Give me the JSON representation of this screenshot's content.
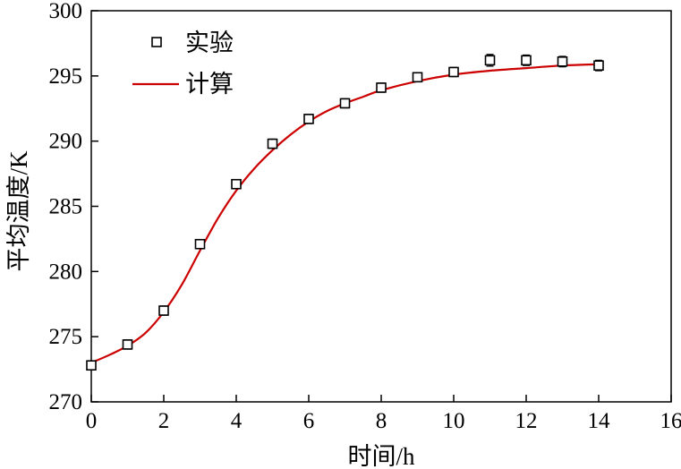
{
  "chart_data": {
    "type": "line",
    "xlabel": "时间/h",
    "ylabel": "平均温度/K",
    "xlim": [
      0,
      16
    ],
    "ylim": [
      270,
      300
    ],
    "xticks": [
      0,
      2,
      4,
      6,
      8,
      10,
      12,
      14,
      16
    ],
    "yticks": [
      270,
      275,
      280,
      285,
      290,
      295,
      300
    ],
    "grid": false,
    "legend_position": "top-left",
    "series": [
      {
        "name": "实验",
        "style": "scatter-square-errorbar",
        "color": "#000000",
        "x": [
          0,
          1,
          2,
          3,
          4,
          5,
          6,
          7,
          8,
          9,
          10,
          11,
          12,
          13,
          14
        ],
        "y": [
          272.8,
          274.4,
          277.0,
          282.1,
          286.7,
          289.8,
          291.7,
          292.9,
          294.1,
          294.9,
          295.3,
          296.2,
          296.2,
          296.1,
          295.8
        ],
        "error": [
          0.35,
          0.35,
          0.35,
          0.35,
          0.35,
          0.35,
          0.35,
          0.35,
          0.35,
          0.35,
          0.35,
          0.45,
          0.4,
          0.4,
          0.4
        ]
      },
      {
        "name": "计算",
        "style": "line",
        "color": "#cc0000",
        "x": [
          0,
          0.5,
          1,
          1.5,
          2,
          2.5,
          3,
          3.5,
          4,
          4.5,
          5,
          5.5,
          6,
          6.5,
          7,
          7.5,
          8,
          9,
          10,
          11,
          12,
          13,
          14
        ],
        "y": [
          273.0,
          273.6,
          274.3,
          275.3,
          276.9,
          279.0,
          281.6,
          284.1,
          286.2,
          287.9,
          289.3,
          290.5,
          291.5,
          292.3,
          292.9,
          293.4,
          293.9,
          294.6,
          295.1,
          295.4,
          295.6,
          295.8,
          295.9
        ]
      }
    ]
  }
}
